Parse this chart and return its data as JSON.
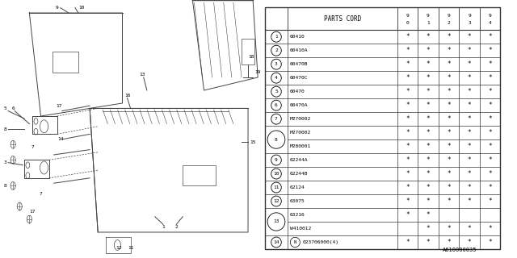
{
  "diagram_code": "A610000035",
  "col_header": "PARTS CORD",
  "year_cols": [
    "9\n0",
    "9\n1",
    "9\n2",
    "9\n3",
    "9\n4"
  ],
  "rows": [
    {
      "num": "1",
      "part": "60410",
      "stars": [
        1,
        1,
        1,
        1,
        1
      ],
      "span": false
    },
    {
      "num": "2",
      "part": "60410A",
      "stars": [
        1,
        1,
        1,
        1,
        1
      ],
      "span": false
    },
    {
      "num": "3",
      "part": "60470B",
      "stars": [
        1,
        1,
        1,
        1,
        1
      ],
      "span": false
    },
    {
      "num": "4",
      "part": "60470C",
      "stars": [
        1,
        1,
        1,
        1,
        1
      ],
      "span": false
    },
    {
      "num": "5",
      "part": "60470",
      "stars": [
        1,
        1,
        1,
        1,
        1
      ],
      "span": false
    },
    {
      "num": "6",
      "part": "60470A",
      "stars": [
        1,
        1,
        1,
        1,
        1
      ],
      "span": false
    },
    {
      "num": "7",
      "part": "M270002",
      "stars": [
        1,
        1,
        1,
        1,
        1
      ],
      "span": false
    },
    {
      "num": "8",
      "part": "M270002",
      "stars": [
        1,
        1,
        1,
        1,
        1
      ],
      "span": true,
      "span_part2": "M280001",
      "stars2": [
        1,
        1,
        1,
        1,
        1
      ]
    },
    {
      "num": "9",
      "part": "62244A",
      "stars": [
        1,
        1,
        1,
        1,
        1
      ],
      "span": false
    },
    {
      "num": "10",
      "part": "62244B",
      "stars": [
        1,
        1,
        1,
        1,
        1
      ],
      "span": false
    },
    {
      "num": "11",
      "part": "62124",
      "stars": [
        1,
        1,
        1,
        1,
        1
      ],
      "span": false
    },
    {
      "num": "12",
      "part": "63075",
      "stars": [
        1,
        1,
        1,
        1,
        1
      ],
      "span": false
    },
    {
      "num": "13",
      "part": "63216",
      "stars": [
        1,
        1,
        0,
        0,
        0
      ],
      "span": true,
      "span_part2": "W410012",
      "stars2": [
        0,
        1,
        1,
        1,
        1
      ]
    },
    {
      "num": "14",
      "part": "N023706000(4)",
      "stars": [
        1,
        1,
        1,
        1,
        1
      ],
      "span": false,
      "circled_n": true
    }
  ],
  "bg_color": "#ffffff",
  "line_color": "#000000",
  "text_color": "#000000"
}
